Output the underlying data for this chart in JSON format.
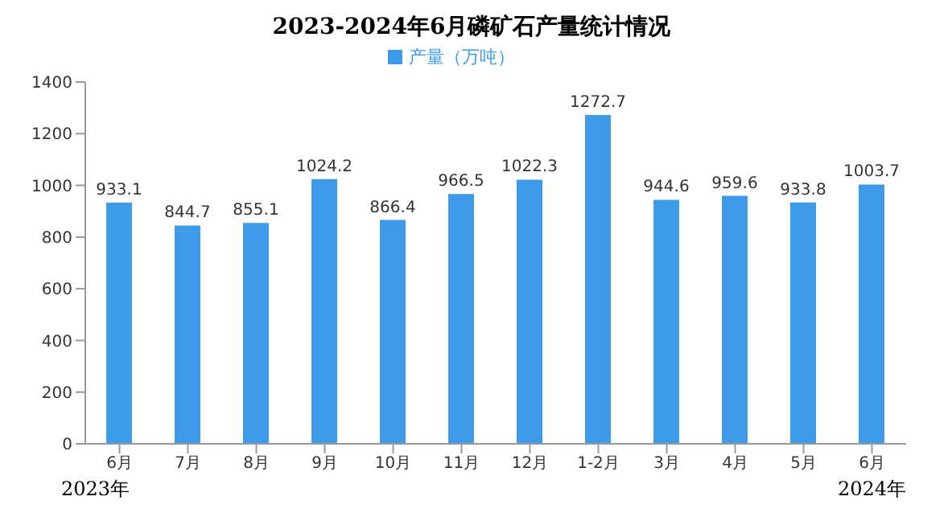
{
  "chart_data": {
    "type": "bar",
    "title": "2023-2024年6月磷矿石产量统计情况",
    "categories": [
      "6月",
      "7月",
      "8月",
      "9月",
      "10月",
      "11月",
      "12月",
      "1-2月",
      "3月",
      "4月",
      "5月",
      "6月"
    ],
    "series": [
      {
        "name": "产量（万吨）",
        "color": "#3d9be9",
        "values": [
          933.1,
          844.7,
          855.1,
          1024.2,
          866.4,
          966.5,
          1022.3,
          1272.7,
          944.6,
          959.6,
          933.8,
          1003.7
        ]
      }
    ],
    "ylim": [
      0,
      1400
    ],
    "yticks": [
      0,
      200,
      400,
      600,
      800,
      1000,
      1200,
      1400
    ],
    "grid": false,
    "legend": "top",
    "data_labels": true,
    "annotations": [
      "2023年",
      "2024年"
    ]
  }
}
